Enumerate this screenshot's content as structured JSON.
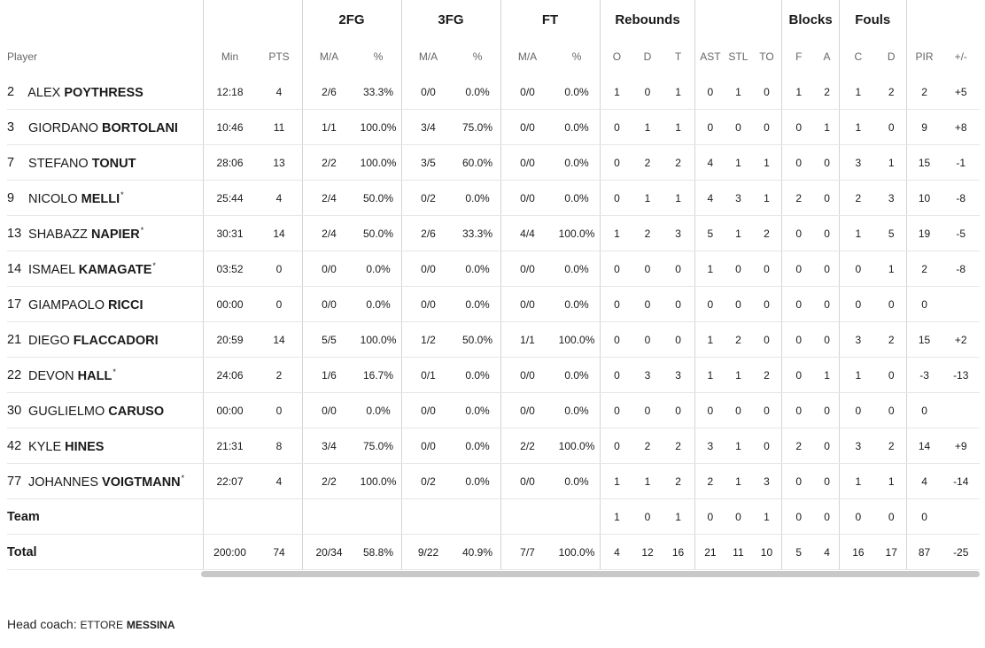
{
  "groups": {
    "fg2": "2FG",
    "fg3": "3FG",
    "ft": "FT",
    "rebounds": "Rebounds",
    "blocks": "Blocks",
    "fouls": "Fouls"
  },
  "columns": [
    "Player",
    "Min",
    "PTS",
    "M/A",
    "%",
    "M/A",
    "%",
    "M/A",
    "%",
    "O",
    "D",
    "T",
    "AST",
    "STL",
    "TO",
    "F",
    "A",
    "C",
    "D",
    "PIR",
    "+/-"
  ],
  "players": [
    {
      "number": "2",
      "first": "ALEX",
      "last": "POYTHRESS",
      "star": "",
      "stats": [
        "12:18",
        "4",
        "2/6",
        "33.3%",
        "0/0",
        "0.0%",
        "0/0",
        "0.0%",
        "1",
        "0",
        "1",
        "0",
        "1",
        "0",
        "1",
        "2",
        "1",
        "2",
        "2",
        "+5"
      ]
    },
    {
      "number": "3",
      "first": "GIORDANO",
      "last": "BORTOLANI",
      "star": "",
      "stats": [
        "10:46",
        "11",
        "1/1",
        "100.0%",
        "3/4",
        "75.0%",
        "0/0",
        "0.0%",
        "0",
        "1",
        "1",
        "0",
        "0",
        "0",
        "0",
        "1",
        "1",
        "0",
        "9",
        "+8"
      ]
    },
    {
      "number": "7",
      "first": "STEFANO",
      "last": "TONUT",
      "star": "",
      "stats": [
        "28:06",
        "13",
        "2/2",
        "100.0%",
        "3/5",
        "60.0%",
        "0/0",
        "0.0%",
        "0",
        "2",
        "2",
        "4",
        "1",
        "1",
        "0",
        "0",
        "3",
        "1",
        "15",
        "-1"
      ]
    },
    {
      "number": "9",
      "first": "NICOLO",
      "last": "MELLI",
      "star": "*",
      "stats": [
        "25:44",
        "4",
        "2/4",
        "50.0%",
        "0/2",
        "0.0%",
        "0/0",
        "0.0%",
        "0",
        "1",
        "1",
        "4",
        "3",
        "1",
        "2",
        "0",
        "2",
        "3",
        "10",
        "-8"
      ]
    },
    {
      "number": "13",
      "first": "SHABAZZ",
      "last": "NAPIER",
      "star": "*",
      "stats": [
        "30:31",
        "14",
        "2/4",
        "50.0%",
        "2/6",
        "33.3%",
        "4/4",
        "100.0%",
        "1",
        "2",
        "3",
        "5",
        "1",
        "2",
        "0",
        "0",
        "1",
        "5",
        "19",
        "-5"
      ]
    },
    {
      "number": "14",
      "first": "ISMAEL",
      "last": "KAMAGATE",
      "star": "*",
      "stats": [
        "03:52",
        "0",
        "0/0",
        "0.0%",
        "0/0",
        "0.0%",
        "0/0",
        "0.0%",
        "0",
        "0",
        "0",
        "1",
        "0",
        "0",
        "0",
        "0",
        "0",
        "1",
        "2",
        "-8"
      ]
    },
    {
      "number": "17",
      "first": "GIAMPAOLO",
      "last": "RICCI",
      "star": "",
      "stats": [
        "00:00",
        "0",
        "0/0",
        "0.0%",
        "0/0",
        "0.0%",
        "0/0",
        "0.0%",
        "0",
        "0",
        "0",
        "0",
        "0",
        "0",
        "0",
        "0",
        "0",
        "0",
        "0",
        ""
      ]
    },
    {
      "number": "21",
      "first": "DIEGO",
      "last": "FLACCADORI",
      "star": "",
      "stats": [
        "20:59",
        "14",
        "5/5",
        "100.0%",
        "1/2",
        "50.0%",
        "1/1",
        "100.0%",
        "0",
        "0",
        "0",
        "1",
        "2",
        "0",
        "0",
        "0",
        "3",
        "2",
        "15",
        "+2"
      ]
    },
    {
      "number": "22",
      "first": "DEVON",
      "last": "HALL",
      "star": "*",
      "stats": [
        "24:06",
        "2",
        "1/6",
        "16.7%",
        "0/1",
        "0.0%",
        "0/0",
        "0.0%",
        "0",
        "3",
        "3",
        "1",
        "1",
        "2",
        "0",
        "1",
        "1",
        "0",
        "-3",
        "-13"
      ]
    },
    {
      "number": "30",
      "first": "GUGLIELMO",
      "last": "CARUSO",
      "star": "",
      "stats": [
        "00:00",
        "0",
        "0/0",
        "0.0%",
        "0/0",
        "0.0%",
        "0/0",
        "0.0%",
        "0",
        "0",
        "0",
        "0",
        "0",
        "0",
        "0",
        "0",
        "0",
        "0",
        "0",
        ""
      ]
    },
    {
      "number": "42",
      "first": "KYLE",
      "last": "HINES",
      "star": "",
      "stats": [
        "21:31",
        "8",
        "3/4",
        "75.0%",
        "0/0",
        "0.0%",
        "2/2",
        "100.0%",
        "0",
        "2",
        "2",
        "3",
        "1",
        "0",
        "2",
        "0",
        "3",
        "2",
        "14",
        "+9"
      ]
    },
    {
      "number": "77",
      "first": "JOHANNES",
      "last": "VOIGTMANN",
      "star": "*",
      "stats": [
        "22:07",
        "4",
        "2/2",
        "100.0%",
        "0/2",
        "0.0%",
        "0/0",
        "0.0%",
        "1",
        "1",
        "2",
        "2",
        "1",
        "3",
        "0",
        "0",
        "1",
        "1",
        "4",
        "-14"
      ]
    }
  ],
  "team": {
    "label": "Team",
    "stats": [
      "",
      "",
      "",
      "",
      "",
      "",
      "",
      "",
      "1",
      "0",
      "1",
      "0",
      "0",
      "1",
      "0",
      "0",
      "0",
      "0",
      "0",
      ""
    ]
  },
  "total": {
    "label": "Total",
    "stats": [
      "200:00",
      "74",
      "20/34",
      "58.8%",
      "9/22",
      "40.9%",
      "7/7",
      "100.0%",
      "4",
      "12",
      "16",
      "21",
      "11",
      "10",
      "5",
      "4",
      "16",
      "17",
      "87",
      "-25"
    ]
  },
  "coach": {
    "label": "Head coach:",
    "first": "ETTORE",
    "last": "MESSINA"
  }
}
